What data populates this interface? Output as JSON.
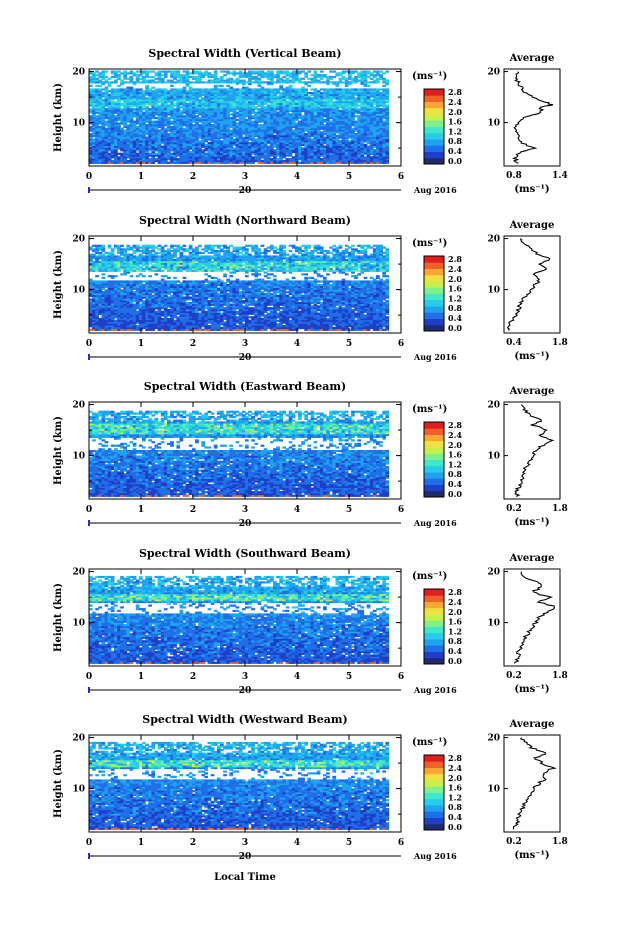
{
  "x_axis": {
    "label": "Local Time",
    "ticks": [
      "0",
      "1",
      "2",
      "3",
      "4",
      "5",
      "6"
    ],
    "range": [
      0,
      6
    ],
    "day_label": "20",
    "month_label": "Aug 2016"
  },
  "y_axis": {
    "label": "Height (km)",
    "ticks": [
      "10",
      "20"
    ],
    "range": [
      1.5,
      20.5
    ]
  },
  "colorbar": {
    "unit": "(ms⁻¹)",
    "ticks": [
      "0.0",
      "0.4",
      "0.8",
      "1.2",
      "1.6",
      "2.0",
      "2.4",
      "2.8"
    ],
    "colors": [
      "#202a6e",
      "#1f3fc8",
      "#1f6fe8",
      "#1fa3f0",
      "#25cdea",
      "#3fe8c8",
      "#7ff08c",
      "#c8f04a",
      "#f0e040",
      "#f8a830",
      "#f06028",
      "#e01e1e"
    ]
  },
  "average_label": "Average",
  "average_unit": "(ms⁻¹)",
  "chart_data": [
    {
      "type": "heatmap",
      "title": "Spectral Width (Vertical Beam)",
      "xlabel": "Local Time",
      "ylabel": "Height (km)",
      "xlim": [
        0,
        6
      ],
      "ylim": [
        1.5,
        20.5
      ],
      "data_end_hour": 5.7,
      "base_width_ms": 0.45,
      "top_km": 20,
      "high_layer": {
        "from_km": 12.5,
        "to_km": 14.5,
        "extra_ms": 0.5
      },
      "gaps_km": [
        [
          16.5,
          17.6
        ]
      ],
      "profile": {
        "xlim": [
          0.6,
          1.4
        ],
        "xticks": [
          "0.8",
          "1.4"
        ],
        "heights": [
          2,
          3,
          4,
          5,
          6,
          7,
          8,
          9,
          10,
          11,
          12,
          13,
          13.5,
          14,
          15,
          16,
          17,
          18,
          19,
          20
        ],
        "values": [
          0.78,
          0.76,
          0.8,
          1.05,
          0.85,
          0.8,
          0.78,
          0.76,
          0.82,
          0.9,
          1.15,
          1.1,
          1.28,
          1.2,
          1.0,
          0.9,
          0.85,
          0.8,
          0.78,
          0.8
        ]
      }
    },
    {
      "type": "heatmap",
      "title": "Spectral Width (Northward Beam)",
      "xlabel": "Local Time",
      "ylabel": "Height (km)",
      "xlim": [
        0,
        6
      ],
      "ylim": [
        1.5,
        20.5
      ],
      "data_end_hour": 5.7,
      "base_width_ms": 0.35,
      "top_km": 18.5,
      "high_layer": {
        "from_km": 13.5,
        "to_km": 15.5,
        "extra_ms": 0.9
      },
      "gaps_km": [
        [
          11.5,
          13.3
        ]
      ],
      "profile": {
        "xlim": [
          0.4,
          1.8
        ],
        "xticks": [
          "0.4",
          "1.8"
        ],
        "heights": [
          2,
          3,
          4,
          5,
          6,
          7,
          8,
          9,
          10,
          11,
          12,
          13,
          14,
          15,
          16,
          17,
          18,
          19,
          20
        ],
        "values": [
          0.55,
          0.5,
          0.6,
          0.7,
          0.75,
          0.8,
          0.85,
          1.0,
          1.05,
          1.2,
          1.3,
          1.1,
          1.5,
          1.3,
          1.6,
          1.2,
          1.1,
          0.9,
          0.8
        ]
      }
    },
    {
      "type": "heatmap",
      "title": "Spectral Width (Eastward Beam)",
      "xlabel": "Local Time",
      "ylabel": "Height (km)",
      "xlim": [
        0,
        6
      ],
      "ylim": [
        1.5,
        20.5
      ],
      "data_end_hour": 5.7,
      "base_width_ms": 0.4,
      "top_km": 18.5,
      "high_layer": {
        "from_km": 14,
        "to_km": 16,
        "extra_ms": 1.0
      },
      "gaps_km": [
        [
          11.0,
          13.5
        ]
      ],
      "profile": {
        "xlim": [
          0.2,
          1.8
        ],
        "xticks": [
          "0.2",
          "1.8"
        ],
        "heights": [
          2,
          3,
          4,
          5,
          6,
          7,
          8,
          9,
          10,
          11,
          12,
          13,
          14,
          15,
          16,
          17,
          18,
          19,
          20
        ],
        "values": [
          0.6,
          0.55,
          0.65,
          0.7,
          0.7,
          0.8,
          0.85,
          0.95,
          1.0,
          1.1,
          1.3,
          1.6,
          1.2,
          1.45,
          1.0,
          1.3,
          0.9,
          0.8,
          0.7
        ]
      }
    },
    {
      "type": "heatmap",
      "title": "Spectral Width (Southward Beam)",
      "xlabel": "Local Time",
      "ylabel": "Height (km)",
      "xlim": [
        0,
        6
      ],
      "ylim": [
        1.5,
        20.5
      ],
      "data_end_hour": 5.7,
      "base_width_ms": 0.4,
      "top_km": 19,
      "high_layer": {
        "from_km": 14,
        "to_km": 15.5,
        "extra_ms": 1.1
      },
      "gaps_km": [
        [
          11.5,
          13.8
        ]
      ],
      "profile": {
        "xlim": [
          0.2,
          1.8
        ],
        "xticks": [
          "0.2",
          "1.8"
        ],
        "heights": [
          2,
          3,
          4,
          5,
          6,
          7,
          8,
          9,
          10,
          11,
          12,
          13,
          14,
          15,
          16,
          17,
          18,
          19,
          20
        ],
        "values": [
          0.55,
          0.6,
          0.6,
          0.7,
          0.75,
          0.8,
          0.9,
          1.0,
          1.1,
          1.2,
          1.4,
          1.7,
          1.2,
          1.5,
          1.0,
          1.3,
          1.1,
          0.8,
          0.7
        ]
      }
    },
    {
      "type": "heatmap",
      "title": "Spectral Width (Westward Beam)",
      "xlabel": "Local Time",
      "ylabel": "Height (km)",
      "xlim": [
        0,
        6
      ],
      "ylim": [
        1.5,
        20.5
      ],
      "data_end_hour": 5.7,
      "base_width_ms": 0.4,
      "top_km": 19,
      "high_layer": {
        "from_km": 14,
        "to_km": 15.5,
        "extra_ms": 1.0
      },
      "gaps_km": [
        [
          11.5,
          13.8
        ]
      ],
      "profile": {
        "xlim": [
          0.2,
          1.8
        ],
        "xticks": [
          "0.2",
          "1.8"
        ],
        "heights": [
          2,
          3,
          4,
          5,
          6,
          7,
          8,
          9,
          10,
          11,
          12,
          13,
          14,
          15,
          16,
          17,
          18,
          19,
          20
        ],
        "values": [
          0.5,
          0.55,
          0.6,
          0.65,
          0.7,
          0.8,
          0.85,
          0.95,
          1.05,
          1.2,
          1.4,
          1.3,
          1.6,
          1.3,
          1.1,
          1.4,
          1.0,
          0.8,
          0.7
        ]
      }
    }
  ]
}
